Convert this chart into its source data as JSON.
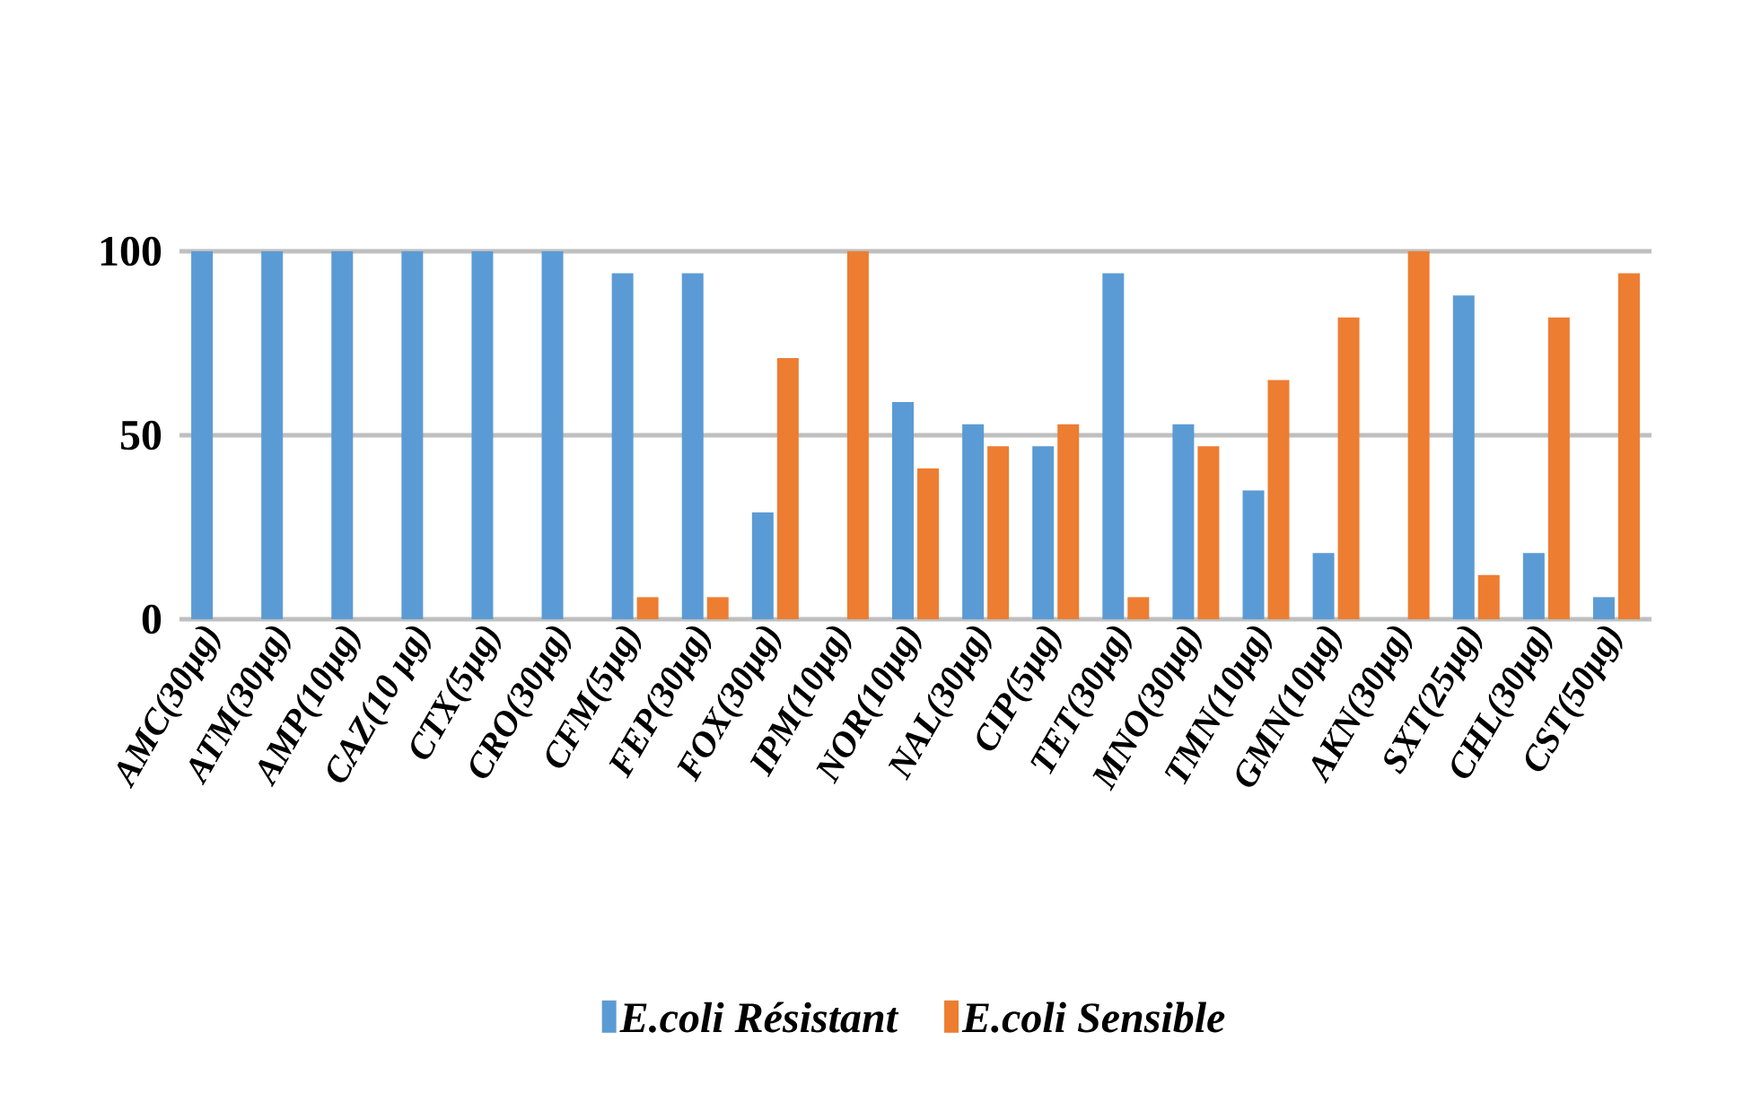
{
  "chart_data": {
    "type": "bar",
    "categories": [
      "AMC(30µg)",
      "ATM(30µg)",
      "AMP(10µg)",
      "CAZ(10 µg)",
      "CTX(5µg)",
      "CRO(30µg)",
      "CFM(5µg)",
      "FEP(30µg)",
      "FOX(30µg)",
      "IPM(10µg)",
      "NOR(10µg)",
      "NAL(30µg)",
      "CIP(5µg)",
      "TET(30µg)",
      "MNO(30µg)",
      "TMN(10µg)",
      "GMN(10µg)",
      "AKN(30µg)",
      "SXT(25µg)",
      "CHL(30µg)",
      "CST(50µg)"
    ],
    "series": [
      {
        "name": "E.coli Résistant",
        "color": "#5b9bd5",
        "values": [
          100,
          100,
          100,
          100,
          100,
          100,
          94,
          94,
          29,
          0,
          59,
          53,
          47,
          94,
          53,
          35,
          18,
          0,
          88,
          18,
          6
        ]
      },
      {
        "name": "E.coli Sensible",
        "color": "#ed7d31",
        "values": [
          0,
          0,
          0,
          0,
          0,
          0,
          6,
          6,
          71,
          100,
          41,
          47,
          53,
          6,
          47,
          65,
          82,
          100,
          12,
          82,
          94
        ]
      }
    ],
    "ylim": [
      0,
      100
    ],
    "yticks": [
      0,
      50,
      100
    ],
    "grid": "y",
    "legend": "bottom"
  }
}
